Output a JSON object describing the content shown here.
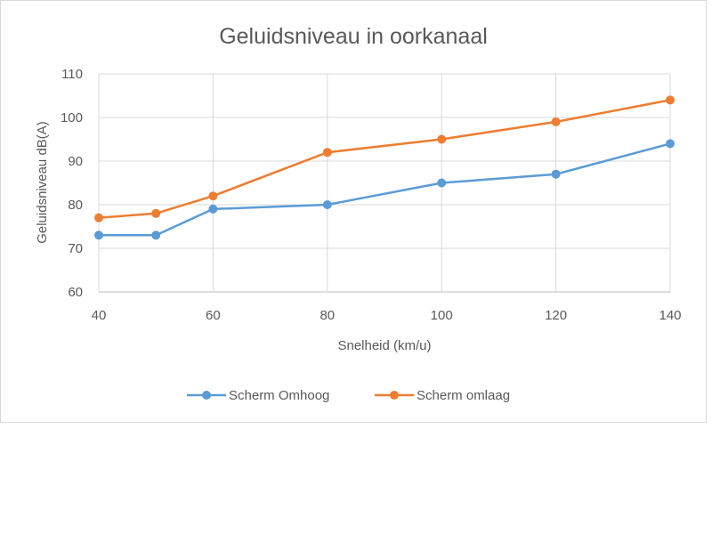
{
  "chart_data": {
    "type": "line",
    "title": "Geluidsniveau in oorkanaal",
    "xlabel": "Snelheid (km/u)",
    "ylabel": "Geluidsniveau dB(A)",
    "x": [
      40,
      50,
      60,
      80,
      100,
      120,
      140
    ],
    "xticks": [
      40,
      60,
      80,
      100,
      120,
      140
    ],
    "yticks": [
      60,
      70,
      80,
      90,
      100,
      110
    ],
    "xlim": [
      40,
      140
    ],
    "ylim": [
      60,
      110
    ],
    "grid": true,
    "legend_position": "bottom",
    "series": [
      {
        "name": "Scherm Omhoog",
        "color": "#5b9bd5",
        "values": [
          73,
          73,
          79,
          80,
          85,
          87,
          94
        ]
      },
      {
        "name": "Scherm omlaag",
        "color": "#ed7d31",
        "values": [
          77,
          78,
          82,
          92,
          95,
          99,
          104
        ]
      }
    ]
  }
}
